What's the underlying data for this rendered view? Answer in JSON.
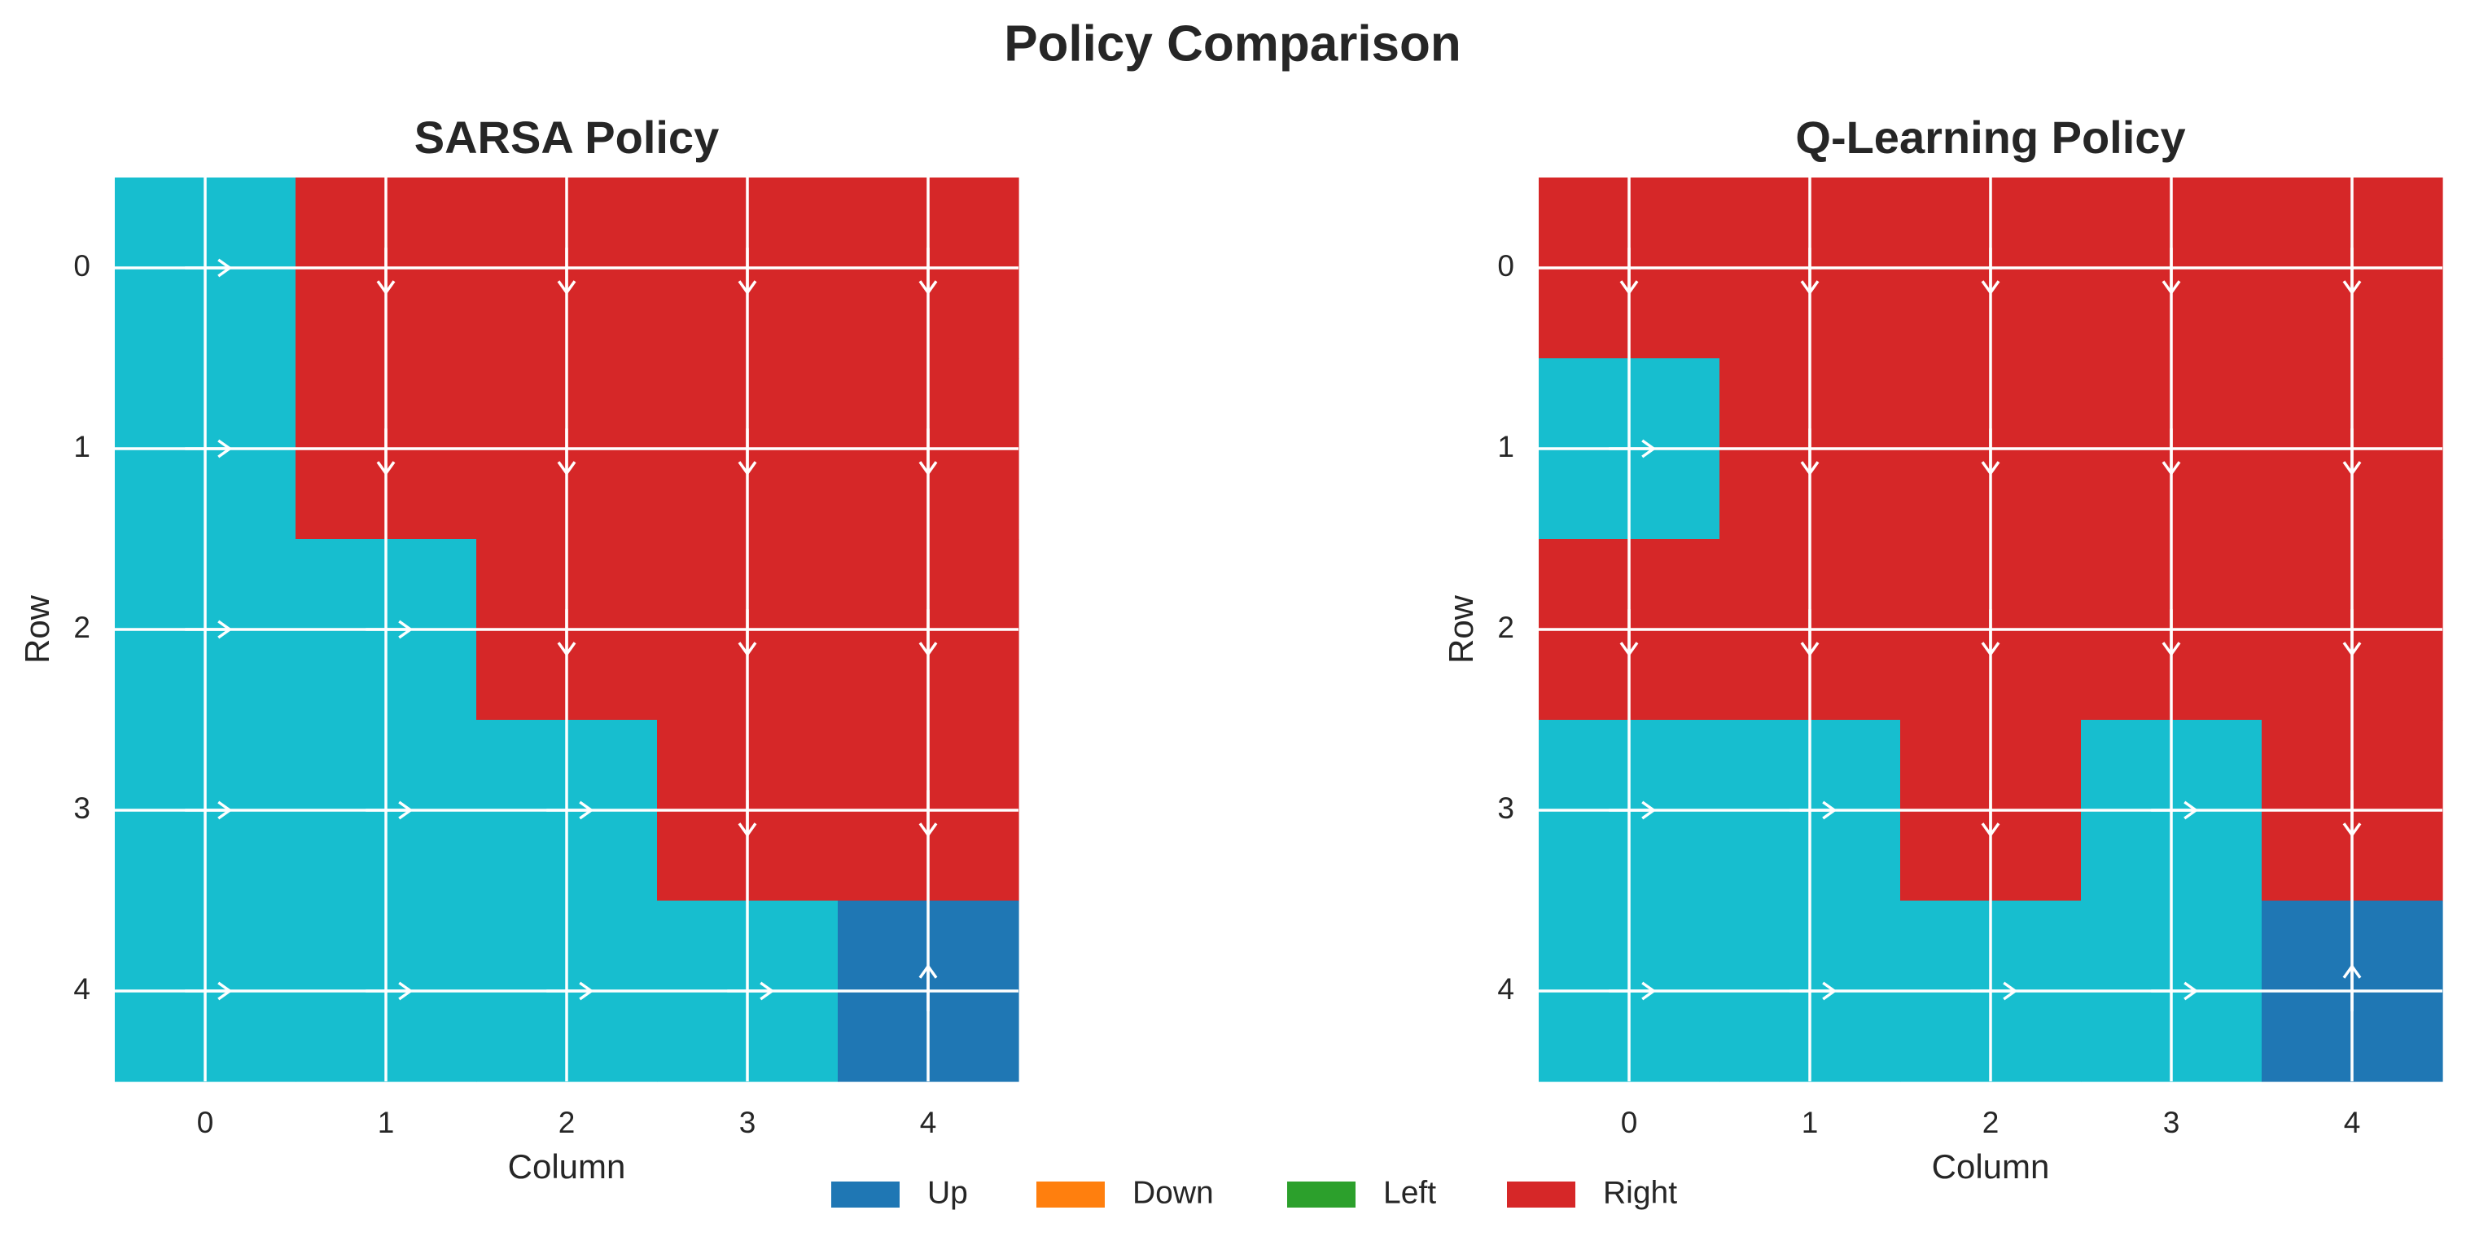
{
  "figure_title": "Policy Comparison",
  "legend": [
    {
      "label": "Up",
      "color": "#1f77b4"
    },
    {
      "label": "Down",
      "color": "#ff7f0e"
    },
    {
      "label": "Left",
      "color": "#2ca02c"
    },
    {
      "label": "Right",
      "color": "#d62728"
    }
  ],
  "chart_data": [
    {
      "type": "heatmap",
      "title": "SARSA Policy",
      "xlabel": "Column",
      "ylabel": "Row",
      "x_ticks": [
        "0",
        "1",
        "2",
        "3",
        "4"
      ],
      "y_ticks": [
        "0",
        "1",
        "2",
        "3",
        "4"
      ],
      "grid": true,
      "color_legend": {
        "Up": "#1f77b4",
        "Down": "#d62728",
        "Right": "#17becf"
      },
      "cells": [
        [
          "Right",
          "Down",
          "Down",
          "Down",
          "Down"
        ],
        [
          "Right",
          "Down",
          "Down",
          "Down",
          "Down"
        ],
        [
          "Right",
          "Right",
          "Down",
          "Down",
          "Down"
        ],
        [
          "Right",
          "Right",
          "Right",
          "Down",
          "Down"
        ],
        [
          "Right",
          "Right",
          "Right",
          "Right",
          "Up"
        ]
      ]
    },
    {
      "type": "heatmap",
      "title": "Q-Learning Policy",
      "xlabel": "Column",
      "ylabel": "Row",
      "x_ticks": [
        "0",
        "1",
        "2",
        "3",
        "4"
      ],
      "y_ticks": [
        "0",
        "1",
        "2",
        "3",
        "4"
      ],
      "grid": true,
      "color_legend": {
        "Up": "#1f77b4",
        "Down": "#d62728",
        "Right": "#17becf"
      },
      "cells": [
        [
          "Down",
          "Down",
          "Down",
          "Down",
          "Down"
        ],
        [
          "Right",
          "Down",
          "Down",
          "Down",
          "Down"
        ],
        [
          "Down",
          "Down",
          "Down",
          "Down",
          "Down"
        ],
        [
          "Right",
          "Right",
          "Down",
          "Right",
          "Down"
        ],
        [
          "Right",
          "Right",
          "Right",
          "Right",
          "Up"
        ]
      ]
    }
  ]
}
